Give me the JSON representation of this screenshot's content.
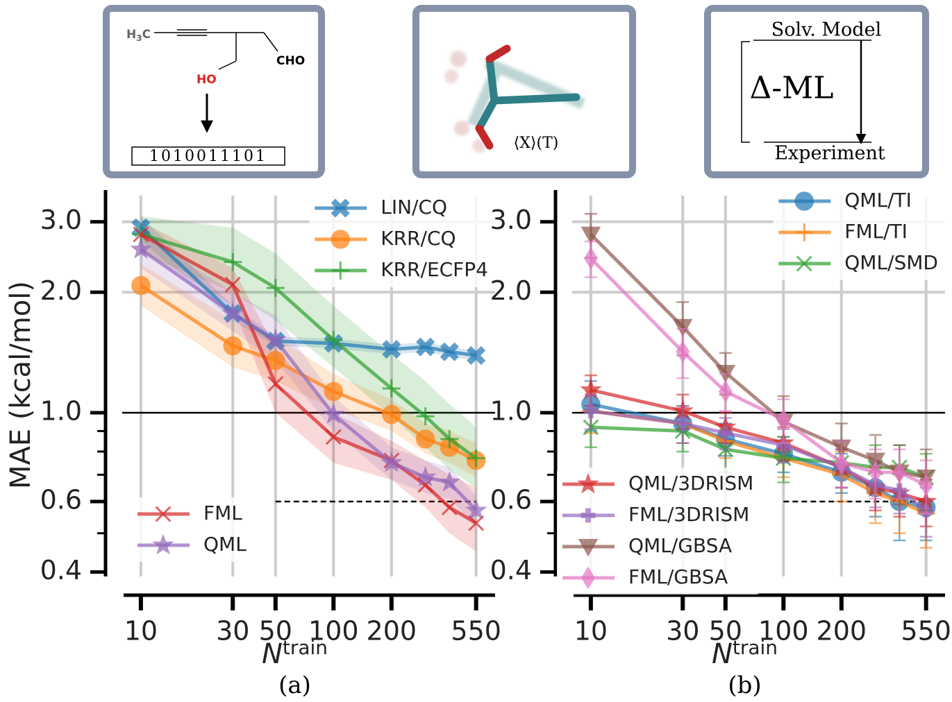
{
  "insets": {
    "fingerprint": {
      "methyl": [
        "H",
        "3",
        "C"
      ],
      "aldehyde": "CHO",
      "hydroxyl": "HO",
      "bits": "1010011101"
    },
    "ensemble": {
      "label": "⟨X⟩(T)"
    },
    "delta": {
      "top": "Solv. Model",
      "middle": "Δ-ML",
      "bottom": "Experiment"
    }
  },
  "chart_data": [
    {
      "type": "line",
      "panel_label": "(a)",
      "ylabel": "MAE (kcal/mol)",
      "xlabel": "N",
      "xlabel_sup": "train",
      "log_x": true,
      "log_y": true,
      "xlim": [
        8,
        690
      ],
      "ylim": [
        0.39,
        3.6
      ],
      "xticks": [
        10,
        30,
        50,
        100,
        200,
        550
      ],
      "yticks": [
        0.4,
        0.6,
        {
          "value": 1,
          "label": "1.0"
        },
        {
          "value": 2,
          "label": "2.0"
        },
        {
          "value": 3,
          "label": "3.0"
        }
      ],
      "yminorticks": [
        0.5,
        0.7,
        0.8,
        0.9
      ],
      "ygrid": [
        2,
        3
      ],
      "hline": 1,
      "refline": {
        "y": 0.6,
        "x": [
          50,
          550
        ]
      },
      "grid_color": "#cccccc",
      "x": [
        10,
        30,
        50,
        100,
        200,
        300,
        400,
        550
      ],
      "series": [
        {
          "name": "LIN/CQ",
          "color": "#1f77b4",
          "marker": "X",
          "legend": "upper right",
          "values": [
            2.9,
            1.77,
            1.51,
            1.49,
            1.44,
            1.46,
            1.42,
            1.39
          ],
          "band_upper": [
            3.1,
            1.85,
            1.55,
            1.53,
            1.48,
            1.5,
            1.46,
            1.43
          ],
          "band_lower": [
            2.7,
            1.7,
            1.47,
            1.45,
            1.4,
            1.42,
            1.38,
            1.35
          ]
        },
        {
          "name": "KRR/CQ",
          "color": "#ff7f0e",
          "marker": "o",
          "legend": "upper right",
          "values": [
            2.08,
            1.47,
            1.35,
            1.13,
            0.99,
            0.86,
            0.82,
            0.76
          ],
          "band_upper": [
            2.35,
            1.7,
            1.55,
            1.25,
            1.08,
            0.94,
            0.9,
            0.84
          ],
          "band_lower": [
            1.85,
            1.3,
            1.2,
            1.02,
            0.9,
            0.79,
            0.75,
            0.69
          ]
        },
        {
          "name": "KRR/ECFP4",
          "color": "#2ca02c",
          "marker": "+",
          "legend": "upper right",
          "values": [
            2.79,
            2.38,
            2.05,
            1.52,
            1.15,
            0.98,
            0.86,
            0.77
          ],
          "band_upper": [
            3.1,
            2.9,
            2.5,
            1.85,
            1.4,
            1.2,
            1.05,
            0.92
          ],
          "band_lower": [
            2.5,
            2.0,
            1.7,
            1.3,
            0.98,
            0.82,
            0.72,
            0.65
          ]
        },
        {
          "name": "FML",
          "color": "#d62728",
          "marker": "x",
          "legend": "lower left",
          "values": [
            2.79,
            2.09,
            1.18,
            0.87,
            0.76,
            0.66,
            0.58,
            0.53
          ],
          "band_upper": [
            3.0,
            2.3,
            1.45,
            1.0,
            0.85,
            0.76,
            0.7,
            0.65
          ],
          "band_lower": [
            2.55,
            1.85,
            1.0,
            0.75,
            0.68,
            0.58,
            0.5,
            0.45
          ]
        },
        {
          "name": "QML",
          "color": "#9467bd",
          "marker": "*",
          "legend": "lower left",
          "values": [
            2.56,
            1.77,
            1.52,
            0.99,
            0.75,
            0.69,
            0.67,
            0.57
          ],
          "band_upper": [
            2.8,
            2.0,
            1.75,
            1.1,
            0.82,
            0.76,
            0.73,
            0.62
          ],
          "band_lower": [
            2.3,
            1.6,
            1.35,
            0.9,
            0.68,
            0.63,
            0.61,
            0.52
          ]
        }
      ]
    },
    {
      "type": "line",
      "panel_label": "(b)",
      "xlabel": "N",
      "xlabel_sup": "train",
      "log_x": true,
      "log_y": true,
      "xlim": [
        8,
        690
      ],
      "ylim": [
        0.39,
        3.6
      ],
      "xticks": [
        10,
        30,
        50,
        100,
        200,
        550
      ],
      "yticks": [
        0.4,
        0.6,
        {
          "value": 1,
          "label": "1.0"
        },
        {
          "value": 2,
          "label": "2.0"
        },
        {
          "value": 3,
          "label": "3.0"
        }
      ],
      "yminorticks": [
        0.5,
        0.7,
        0.8,
        0.9
      ],
      "ygrid": [
        2,
        3
      ],
      "hline": 1,
      "refline": {
        "y": 0.6,
        "x": [
          100,
          550
        ]
      },
      "grid_color": "#cccccc",
      "x": [
        10,
        30,
        50,
        100,
        200,
        300,
        400,
        550
      ],
      "series": [
        {
          "name": "QML/TI",
          "color": "#1f77b4",
          "marker": "o",
          "legend": "upper right",
          "values": [
            1.05,
            0.94,
            0.86,
            0.79,
            0.71,
            0.65,
            0.6,
            0.58
          ],
          "errors": [
            0.15,
            0.1,
            0.08,
            0.08,
            0.08,
            0.1,
            0.12,
            0.1
          ]
        },
        {
          "name": "FML/TI",
          "color": "#ff7f0e",
          "marker": "+",
          "legend": "upper right",
          "values": [
            1.01,
            0.94,
            0.85,
            0.77,
            0.7,
            0.63,
            0.6,
            0.56
          ],
          "errors": [
            0.12,
            0.1,
            0.08,
            0.08,
            0.1,
            0.1,
            0.1,
            0.1
          ]
        },
        {
          "name": "QML/SMD",
          "color": "#2ca02c",
          "marker": "x",
          "legend": "upper right",
          "values": [
            0.92,
            0.9,
            0.81,
            0.77,
            0.75,
            0.73,
            0.73,
            0.69
          ],
          "errors": [
            0.1,
            0.1,
            0.1,
            0.1,
            0.1,
            0.1,
            0.1,
            0.1
          ]
        },
        {
          "name": "QML/3DRISM",
          "color": "#d62728",
          "marker": "*",
          "legend": "lower left",
          "values": [
            1.14,
            1.01,
            0.92,
            0.84,
            0.73,
            0.65,
            0.63,
            0.6
          ],
          "errors": [
            0.1,
            0.1,
            0.08,
            0.08,
            0.08,
            0.08,
            0.08,
            0.08
          ]
        },
        {
          "name": "FML/3DRISM",
          "color": "#9467bd",
          "marker": "P",
          "legend": "lower left",
          "values": [
            1.01,
            0.94,
            0.89,
            0.83,
            0.73,
            0.66,
            0.64,
            0.57
          ],
          "errors": [
            0.1,
            0.1,
            0.08,
            0.08,
            0.08,
            0.08,
            0.08,
            0.08
          ]
        },
        {
          "name": "QML/GBSA",
          "color": "#8c564b",
          "marker": "v",
          "legend": "lower left",
          "values": [
            2.79,
            1.64,
            1.26,
            0.95,
            0.82,
            0.76,
            0.71,
            0.69
          ],
          "errors": [
            0.35,
            0.25,
            0.15,
            0.15,
            0.12,
            0.12,
            0.12,
            0.12
          ]
        },
        {
          "name": "FML/GBSA",
          "color": "#e377c2",
          "marker": "D",
          "legend": "lower left",
          "values": [
            2.43,
            1.42,
            1.13,
            0.96,
            0.75,
            0.71,
            0.71,
            0.66
          ],
          "errors": [
            0.25,
            0.2,
            0.12,
            0.12,
            0.1,
            0.1,
            0.1,
            0.1
          ]
        }
      ]
    }
  ]
}
